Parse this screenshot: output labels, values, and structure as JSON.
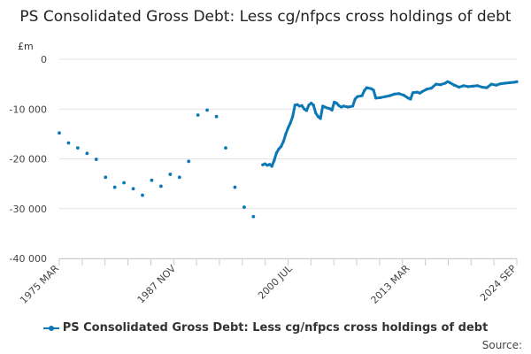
{
  "title": "PS Consolidated Gross Debt: Less cg/nfpcs cross holdings of debt",
  "unit": "£m",
  "source_label": "Source:",
  "chart_data": {
    "type": "line",
    "title": "PS Consolidated Gross Debt: Less cg/nfpcs cross holdings of debt",
    "ylabel": "£m",
    "xlabel": "",
    "ylim": [
      -40000,
      0
    ],
    "yticks": [
      0,
      -10000,
      -20000,
      -30000,
      -40000
    ],
    "ytick_labels": [
      "0",
      "-10 000",
      "-20 000",
      "-30 000",
      "-40 000"
    ],
    "xlim": [
      1975.25,
      2024.75
    ],
    "xticks": [
      1975.25,
      1987.9,
      2000.5,
      2013.2,
      2024.75
    ],
    "xtick_labels": [
      "1975 MAR",
      "1987 NOV",
      "2000 JUL",
      "2013 MAR",
      "2024 SEP"
    ],
    "grid": true,
    "legend_position": "bottom",
    "color": "#0b78b6",
    "series": [
      {
        "name": "PS Consolidated Gross Debt: Less cg/nfpcs cross holdings of debt",
        "annual_points": [
          [
            1975.25,
            -14800
          ],
          [
            1976.25,
            -16800
          ],
          [
            1977.25,
            -17800
          ],
          [
            1978.25,
            -18900
          ],
          [
            1979.25,
            -20100
          ],
          [
            1980.25,
            -23700
          ],
          [
            1981.25,
            -25700
          ],
          [
            1982.25,
            -24800
          ],
          [
            1983.25,
            -26000
          ],
          [
            1984.25,
            -27300
          ],
          [
            1985.25,
            -24300
          ],
          [
            1986.25,
            -25500
          ],
          [
            1987.25,
            -23100
          ],
          [
            1988.25,
            -23700
          ],
          [
            1989.25,
            -20500
          ],
          [
            1990.25,
            -11200
          ],
          [
            1991.25,
            -10200
          ],
          [
            1992.25,
            -11500
          ],
          [
            1993.25,
            -17800
          ],
          [
            1994.25,
            -25700
          ],
          [
            1995.25,
            -29700
          ],
          [
            1996.25,
            -31600
          ]
        ],
        "monthly_points": [
          [
            1997.25,
            -21200
          ],
          [
            1997.5,
            -21000
          ],
          [
            1997.75,
            -21300
          ],
          [
            1998.0,
            -21100
          ],
          [
            1998.25,
            -21500
          ],
          [
            1998.5,
            -20300
          ],
          [
            1998.75,
            -18800
          ],
          [
            1999.0,
            -18000
          ],
          [
            1999.25,
            -17500
          ],
          [
            1999.5,
            -16500
          ],
          [
            1999.75,
            -15000
          ],
          [
            2000.0,
            -13800
          ],
          [
            2000.25,
            -12800
          ],
          [
            2000.5,
            -11500
          ],
          [
            2000.75,
            -9200
          ],
          [
            2001.0,
            -9100
          ],
          [
            2001.25,
            -9400
          ],
          [
            2001.5,
            -9300
          ],
          [
            2001.75,
            -10000
          ],
          [
            2002.0,
            -10300
          ],
          [
            2002.25,
            -9200
          ],
          [
            2002.5,
            -8800
          ],
          [
            2002.75,
            -9200
          ],
          [
            2003.0,
            -10800
          ],
          [
            2003.25,
            -11500
          ],
          [
            2003.5,
            -11900
          ],
          [
            2003.75,
            -9400
          ],
          [
            2004.0,
            -9600
          ],
          [
            2004.25,
            -9800
          ],
          [
            2004.5,
            -9900
          ],
          [
            2004.75,
            -10200
          ],
          [
            2005.0,
            -8600
          ],
          [
            2005.25,
            -8800
          ],
          [
            2005.5,
            -9300
          ],
          [
            2005.75,
            -9600
          ],
          [
            2006.0,
            -9400
          ],
          [
            2006.5,
            -9600
          ],
          [
            2007.0,
            -9400
          ],
          [
            2007.25,
            -8000
          ],
          [
            2007.5,
            -7500
          ],
          [
            2008.0,
            -7300
          ],
          [
            2008.25,
            -6300
          ],
          [
            2008.5,
            -5700
          ],
          [
            2009.0,
            -5900
          ],
          [
            2009.25,
            -6200
          ],
          [
            2009.5,
            -7800
          ],
          [
            2010.0,
            -7700
          ],
          [
            2010.5,
            -7500
          ],
          [
            2011.0,
            -7300
          ],
          [
            2011.5,
            -7000
          ],
          [
            2012.0,
            -6900
          ],
          [
            2012.5,
            -7200
          ],
          [
            2013.0,
            -7800
          ],
          [
            2013.25,
            -8000
          ],
          [
            2013.5,
            -6700
          ],
          [
            2014.0,
            -6600
          ],
          [
            2014.25,
            -6800
          ],
          [
            2014.5,
            -6500
          ],
          [
            2015.0,
            -6000
          ],
          [
            2015.5,
            -5800
          ],
          [
            2016.0,
            -5000
          ],
          [
            2016.5,
            -5100
          ],
          [
            2017.0,
            -4800
          ],
          [
            2017.25,
            -4500
          ],
          [
            2017.5,
            -4700
          ],
          [
            2018.0,
            -5200
          ],
          [
            2018.5,
            -5600
          ],
          [
            2019.0,
            -5300
          ],
          [
            2019.5,
            -5500
          ],
          [
            2020.0,
            -5400
          ],
          [
            2020.5,
            -5300
          ],
          [
            2021.0,
            -5600
          ],
          [
            2021.5,
            -5700
          ],
          [
            2022.0,
            -5000
          ],
          [
            2022.5,
            -5200
          ],
          [
            2023.0,
            -4900
          ],
          [
            2023.5,
            -4800
          ],
          [
            2024.0,
            -4700
          ],
          [
            2024.5,
            -4600
          ],
          [
            2024.75,
            -4500
          ]
        ]
      }
    ]
  }
}
